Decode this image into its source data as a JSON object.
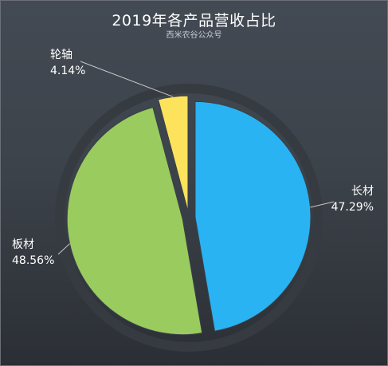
{
  "chart_data": {
    "type": "pie",
    "title": "2019年各产品营收占比",
    "subtitle": "西米农谷公众号",
    "slices": [
      {
        "label": "长材",
        "value": 47.29,
        "value_text": "47.29%",
        "color": "#2ab3f2"
      },
      {
        "label": "板材",
        "value": 48.56,
        "value_text": "48.56%",
        "color": "#9acb5f"
      },
      {
        "label": "轮轴",
        "value": 4.14,
        "value_text": "4.14%",
        "color": "#fde35b"
      }
    ],
    "start_angle": "12 o'clock",
    "direction": "clockwise",
    "exploded": true,
    "legend": "none",
    "background_color": "#3f454d",
    "ring_color": "#363b42",
    "leader_line_color": "#c8c8c8"
  }
}
